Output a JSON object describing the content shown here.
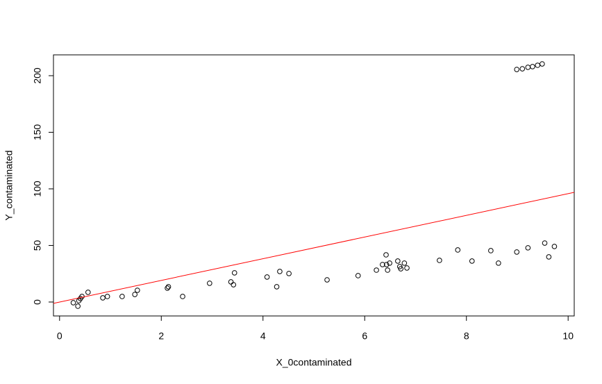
{
  "chart_data": {
    "type": "scatter",
    "x_label": "X_0contaminated",
    "y_label": "Y_contaminated",
    "xlim": [
      -0.12,
      10.12
    ],
    "ylim": [
      -12.3,
      218.4
    ],
    "xticks": [
      0,
      2,
      4,
      6,
      8,
      10
    ],
    "yticks": [
      0,
      50,
      100,
      150,
      200
    ],
    "series": [
      {
        "color": "#000000",
        "x": [
          0.27,
          0.36,
          0.38,
          0.41,
          0.44,
          0.56,
          0.85,
          0.94,
          1.23,
          1.48,
          1.53,
          2.12,
          2.14,
          2.42,
          2.95,
          3.37,
          3.42,
          3.44,
          4.08,
          4.27,
          4.33,
          4.51,
          5.26,
          5.87,
          6.23,
          6.35,
          6.42,
          6.43,
          6.45,
          6.49,
          6.65,
          6.69,
          6.71,
          6.78,
          6.83,
          7.47,
          7.83,
          8.11,
          8.48,
          8.63,
          8.99,
          9.21,
          9.54,
          9.62,
          9.73,
          8.99,
          9.1,
          9.21,
          9.3,
          9.4,
          9.49
        ],
        "values": [
          -0.6,
          -3.7,
          1.2,
          3.1,
          4.9,
          8.6,
          3.7,
          4.9,
          4.9,
          6.7,
          10.4,
          12.3,
          13.5,
          4.9,
          16.6,
          17.8,
          15.3,
          25.8,
          22.1,
          13.5,
          27.0,
          25.2,
          19.6,
          23.3,
          28.2,
          33.1,
          41.7,
          33.1,
          28.2,
          34.4,
          36.2,
          31.3,
          29.4,
          34.4,
          30.1,
          36.8,
          46.0,
          36.2,
          45.4,
          34.4,
          44.2,
          47.9,
          52.1,
          39.9,
          49.1,
          205.5,
          206.1,
          207.4,
          208.0,
          209.2,
          210.4
        ]
      }
    ],
    "abline": {
      "intercept": -0.05,
      "slope": 9.58,
      "color": "#ff0000"
    }
  }
}
